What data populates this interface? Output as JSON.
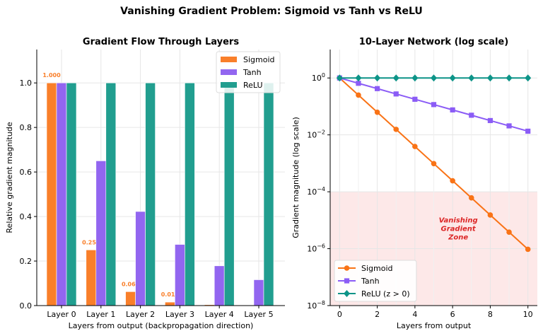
{
  "suptitle": "Vanishing Gradient Problem: Sigmoid vs Tanh vs ReLU",
  "chart_data": [
    {
      "type": "bar",
      "title": "Gradient Flow Through Layers",
      "xlabel": "Layers from output (backpropagation direction)",
      "ylabel": "Relative gradient magnitude",
      "categories": [
        "Layer 0",
        "Layer 1",
        "Layer 2",
        "Layer 3",
        "Layer 4",
        "Layer 5"
      ],
      "ylim": [
        0,
        1.15
      ],
      "yticks": [
        "0.0",
        "0.2",
        "0.4",
        "0.6",
        "0.8",
        "1.0"
      ],
      "grid": true,
      "legend_placement": "top-right",
      "series": [
        {
          "name": "Sigmoid",
          "color": "#f97f2a",
          "values": [
            1.0,
            0.25,
            0.0625,
            0.0156,
            0.0039,
            0.001
          ],
          "data_labels": [
            "1.000",
            "0.250",
            "0.062",
            "0.016",
            "",
            ""
          ]
        },
        {
          "name": "Tanh",
          "color": "#9266f0",
          "values": [
            1.0,
            0.65,
            0.4225,
            0.2746,
            0.1785,
            0.116
          ]
        },
        {
          "name": "ReLU",
          "color": "#219e8f",
          "values": [
            1.0,
            1.0,
            1.0,
            1.0,
            1.0,
            1.0
          ]
        }
      ]
    },
    {
      "type": "line",
      "title": "10-Layer Network (log scale)",
      "xlabel": "Layers from output",
      "ylabel": "Gradient magnitude (log scale)",
      "x": [
        0,
        1,
        2,
        3,
        4,
        5,
        6,
        7,
        8,
        9,
        10
      ],
      "xlim": [
        -0.5,
        10.5
      ],
      "xticks": [
        "0",
        "2",
        "4",
        "6",
        "8",
        "10"
      ],
      "yscale": "log",
      "ylim": [
        1e-08,
        10
      ],
      "yticks": [
        "10^0",
        "10^-2",
        "10^-4",
        "10^-6",
        "10^-8"
      ],
      "grid": true,
      "legend_placement": "bottom-left",
      "series": [
        {
          "name": "Sigmoid",
          "color": "#f97316",
          "marker": "circle",
          "values": [
            1,
            0.25,
            0.0625,
            0.015625,
            0.00390625,
            0.0009765625,
            0.000244140625,
            6.103515625e-05,
            1.52587890625e-05,
            3.814697265625e-06,
            9.5367431640625e-07
          ]
        },
        {
          "name": "Tanh",
          "color": "#8b5cf6",
          "marker": "square",
          "values": [
            1,
            0.65,
            0.4225,
            0.274625,
            0.17850625,
            0.1160290625,
            0.075418890625,
            0.049022278906,
            0.031864481289,
            0.020711912838,
            0.013462743345
          ]
        },
        {
          "name": "ReLU (z > 0)",
          "color": "#0d9488",
          "marker": "diamond",
          "values": [
            1,
            1,
            1,
            1,
            1,
            1,
            1,
            1,
            1,
            1,
            1
          ]
        }
      ],
      "shaded_region": {
        "ymin": 1e-08,
        "ymax": 0.0001,
        "color": "#fde8e8"
      },
      "annotation": {
        "lines": [
          "Vanishing",
          "Gradient",
          "Zone"
        ],
        "x": 6.3,
        "y": 3e-06,
        "color": "#dc2626"
      }
    }
  ]
}
